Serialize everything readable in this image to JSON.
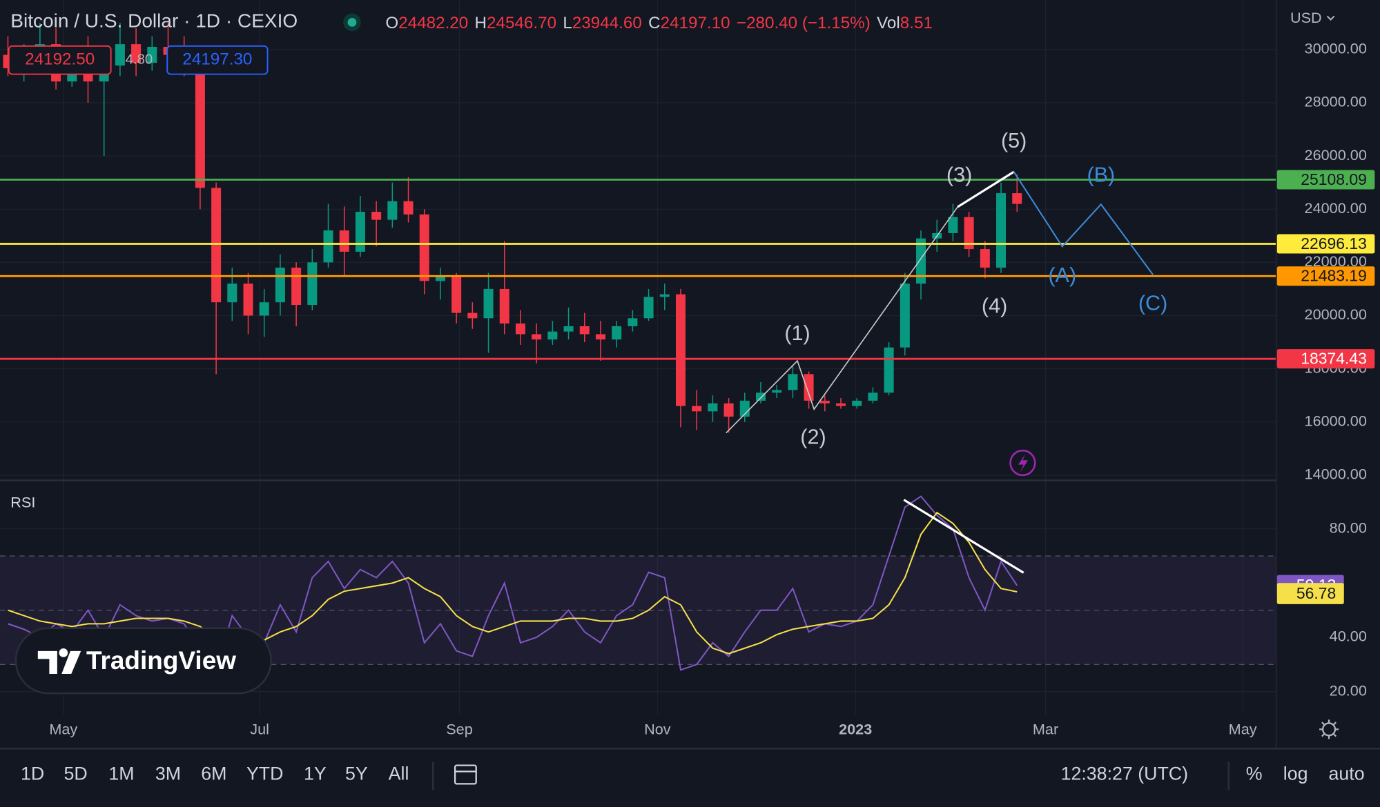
{
  "header": {
    "title": "Bitcoin / U.S. Dollar · 1D · CEXIO",
    "ohlc": [
      {
        "key": "O",
        "value": "24482.20"
      },
      {
        "key": "H",
        "value": "24546.70"
      },
      {
        "key": "L",
        "value": "23944.60"
      },
      {
        "key": "C",
        "value": "24197.10"
      }
    ],
    "change": "−280.40 (−1.15%)",
    "vol_key": "Vol",
    "vol_value": "8.51",
    "bid": "24192.50",
    "spread": "4.80",
    "ask": "24197.30",
    "currency": "USD"
  },
  "price_chart": {
    "ylim": [
      13835,
      31850
    ],
    "yticks": [
      {
        "value": 30000,
        "label": "30000.00"
      },
      {
        "value": 28000,
        "label": "28000.00"
      },
      {
        "value": 26000,
        "label": "26000.00"
      },
      {
        "value": 24000,
        "label": "24000.00"
      },
      {
        "value": 22000,
        "label": "22000.00"
      },
      {
        "value": 20000,
        "label": "20000.00"
      },
      {
        "value": 18000,
        "label": "18000.00"
      },
      {
        "value": 16000,
        "label": "16000.00"
      },
      {
        "value": 14000,
        "label": "14000.00"
      }
    ],
    "levels": [
      {
        "value": 25108.09,
        "color": "#4caf50"
      },
      {
        "value": 22696.13,
        "color": "#ffeb3b"
      },
      {
        "value": 21483.19,
        "color": "#ff9800"
      },
      {
        "value": 18374.43,
        "color": "#f23645"
      }
    ],
    "up_color": "#089981",
    "down_color": "#f23645",
    "candles": [
      [
        29800,
        30500,
        29000,
        29300
      ],
      [
        29300,
        30200,
        28800,
        29900
      ],
      [
        29900,
        31000,
        29200,
        30200
      ],
      [
        30200,
        30800,
        28500,
        28800
      ],
      [
        28800,
        30000,
        28600,
        29700
      ],
      [
        29700,
        30500,
        28000,
        28800
      ],
      [
        28800,
        29500,
        26000,
        29400
      ],
      [
        29400,
        31000,
        29000,
        30200
      ],
      [
        30200,
        30800,
        29000,
        29500
      ],
      [
        29500,
        30500,
        29200,
        30100
      ],
      [
        30100,
        31000,
        29500,
        29800
      ],
      [
        29800,
        30500,
        29000,
        29600
      ],
      [
        29600,
        29800,
        24000,
        24800
      ],
      [
        24800,
        25000,
        17800,
        20500
      ],
      [
        20500,
        21800,
        19800,
        21200
      ],
      [
        21200,
        21600,
        19300,
        20000
      ],
      [
        20000,
        21000,
        19200,
        20500
      ],
      [
        20500,
        22300,
        20000,
        21800
      ],
      [
        21800,
        22000,
        19600,
        20400
      ],
      [
        20400,
        22500,
        20200,
        22000
      ],
      [
        22000,
        24200,
        21800,
        23200
      ],
      [
        23200,
        24100,
        21500,
        22400
      ],
      [
        22400,
        24500,
        22200,
        23900
      ],
      [
        23900,
        24300,
        22600,
        23600
      ],
      [
        23600,
        25000,
        23300,
        24300
      ],
      [
        24300,
        25200,
        23500,
        23800
      ],
      [
        23800,
        24000,
        20800,
        21300
      ],
      [
        21300,
        21800,
        20600,
        21500
      ],
      [
        21500,
        21600,
        19700,
        20100
      ],
      [
        20100,
        20500,
        19500,
        19900
      ],
      [
        19900,
        21600,
        18600,
        21000
      ],
      [
        21000,
        22800,
        19300,
        19700
      ],
      [
        19700,
        20200,
        18900,
        19300
      ],
      [
        19300,
        19700,
        18200,
        19100
      ],
      [
        19100,
        19800,
        18900,
        19400
      ],
      [
        19400,
        20300,
        19100,
        19600
      ],
      [
        19600,
        20100,
        19000,
        19300
      ],
      [
        19300,
        19800,
        18300,
        19100
      ],
      [
        19100,
        19800,
        18800,
        19600
      ],
      [
        19600,
        20200,
        19400,
        19900
      ],
      [
        19900,
        21000,
        19800,
        20700
      ],
      [
        20700,
        21200,
        20200,
        20800
      ],
      [
        20800,
        21000,
        15800,
        16600
      ],
      [
        16600,
        17200,
        15700,
        16400
      ],
      [
        16400,
        17000,
        16000,
        16700
      ],
      [
        16700,
        16900,
        15600,
        16200
      ],
      [
        16200,
        17100,
        16000,
        16800
      ],
      [
        16800,
        17500,
        16700,
        17100
      ],
      [
        17100,
        17400,
        16900,
        17200
      ],
      [
        17200,
        18100,
        16900,
        17800
      ],
      [
        17800,
        17900,
        16500,
        16800
      ],
      [
        16800,
        17000,
        16400,
        16700
      ],
      [
        16700,
        16900,
        16500,
        16600
      ],
      [
        16600,
        16900,
        16500,
        16800
      ],
      [
        16800,
        17300,
        16700,
        17100
      ],
      [
        17100,
        19000,
        17000,
        18800
      ],
      [
        18800,
        21600,
        18500,
        21200
      ],
      [
        21200,
        23200,
        20600,
        22900
      ],
      [
        22900,
        23600,
        22400,
        23100
      ],
      [
        23100,
        24200,
        22800,
        23700
      ],
      [
        23700,
        23900,
        22200,
        22500
      ],
      [
        22500,
        22800,
        21400,
        21800
      ],
      [
        21800,
        25000,
        21600,
        24600
      ],
      [
        24600,
        25300,
        23900,
        24197.1
      ]
    ],
    "waves": [
      "(1)",
      "(2)",
      "(3)",
      "(4)",
      "(5)"
    ],
    "corrections": [
      "(A)",
      "(B)",
      "(C)"
    ]
  },
  "rsi": {
    "title": "RSI",
    "ylim": [
      15.5,
      97.2
    ],
    "yticks": [
      {
        "value": 80,
        "label": "80.00"
      },
      {
        "value": 40,
        "label": "40.00"
      },
      {
        "value": 20,
        "label": "20.00"
      }
    ],
    "bands": [
      30,
      50,
      70
    ],
    "series": [
      {
        "color": "#7e57c2",
        "values": [
          45,
          43,
          40,
          45,
          42,
          50,
          40,
          52,
          48,
          46,
          47,
          45,
          35,
          28,
          48,
          40,
          38,
          52,
          42,
          62,
          68,
          58,
          65,
          62,
          68,
          60,
          38,
          45,
          35,
          33,
          48,
          60,
          38,
          40,
          44,
          50,
          42,
          38,
          48,
          52,
          64,
          62,
          28,
          30,
          38,
          33,
          42,
          50,
          50,
          58,
          42,
          45,
          44,
          46,
          52,
          70,
          88,
          92,
          85,
          80,
          62,
          50,
          68,
          59.13
        ]
      },
      {
        "color": "#f5e04a",
        "values": [
          50,
          48,
          46,
          45,
          44,
          45,
          45,
          46,
          47,
          47,
          47,
          46,
          44,
          40,
          40,
          40,
          39,
          42,
          44,
          48,
          54,
          57,
          58,
          59,
          60,
          62,
          58,
          55,
          48,
          44,
          42,
          44,
          46,
          46,
          46,
          47,
          47,
          46,
          46,
          47,
          50,
          55,
          52,
          42,
          36,
          34,
          36,
          38,
          41,
          43,
          44,
          45,
          46,
          46,
          47,
          52,
          62,
          78,
          86,
          82,
          75,
          65,
          58,
          56.78
        ]
      }
    ]
  },
  "time_axis": [
    "May",
    "Jul",
    "Sep",
    "Nov",
    "2023",
    "Mar",
    "May"
  ],
  "logo": "TradingView",
  "toolbar": {
    "ranges": [
      "1D",
      "5D",
      "1M",
      "3M",
      "6M",
      "YTD",
      "1Y",
      "5Y",
      "All"
    ],
    "clock": "12:38:27 (UTC)",
    "percent": "%",
    "log": "log",
    "auto": "auto"
  }
}
